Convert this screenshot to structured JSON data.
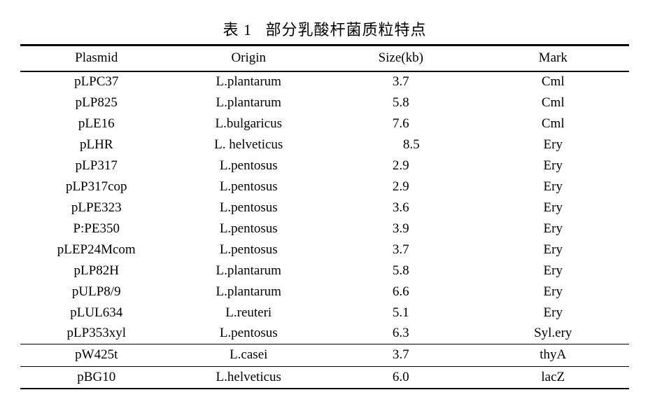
{
  "title": "表 1   部分乳酸杆菌质粒特点",
  "table": {
    "columns": [
      "Plasmid",
      "Origin",
      "Size(kb)",
      "Mark"
    ],
    "main_rows": [
      [
        "pLPC37",
        "L.plantarum",
        "3.7",
        "Cml"
      ],
      [
        "pLP825",
        "L.plantarum",
        "5.8",
        "Cml"
      ],
      [
        "pLE16",
        "L.bulgaricus",
        "7.6",
        "Cml"
      ],
      [
        "pLHR",
        "L. helveticus",
        "8.5",
        "Ery"
      ],
      [
        "pLP317",
        "L.pentosus",
        "2.9",
        "Ery"
      ],
      [
        "pLP317cop",
        "L.pentosus",
        "2.9",
        "Ery"
      ],
      [
        "pLPE323",
        "L.pentosus",
        "3.6",
        "Ery"
      ],
      [
        "P:PE350",
        "L.pentosus",
        "3.9",
        "Ery"
      ],
      [
        "pLEP24Mcom",
        "L.pentosus",
        "3.7",
        "Ery"
      ],
      [
        "pLP82H",
        "L.plantarum",
        "5.8",
        "Ery"
      ],
      [
        "pULP8/9",
        "L.plantarum",
        "6.6",
        "Ery"
      ],
      [
        "pLUL634",
        "L.reuteri",
        "5.1",
        "Ery"
      ],
      [
        "pLP353xyl",
        "L.pentosus",
        "6.3",
        "Syl.ery"
      ]
    ],
    "footer_rows": [
      [
        "pW425t",
        "L.casei",
        "3.7",
        "thyA"
      ],
      [
        "pBG10",
        "L.helveticus",
        "6.0",
        "lacZ"
      ]
    ]
  }
}
